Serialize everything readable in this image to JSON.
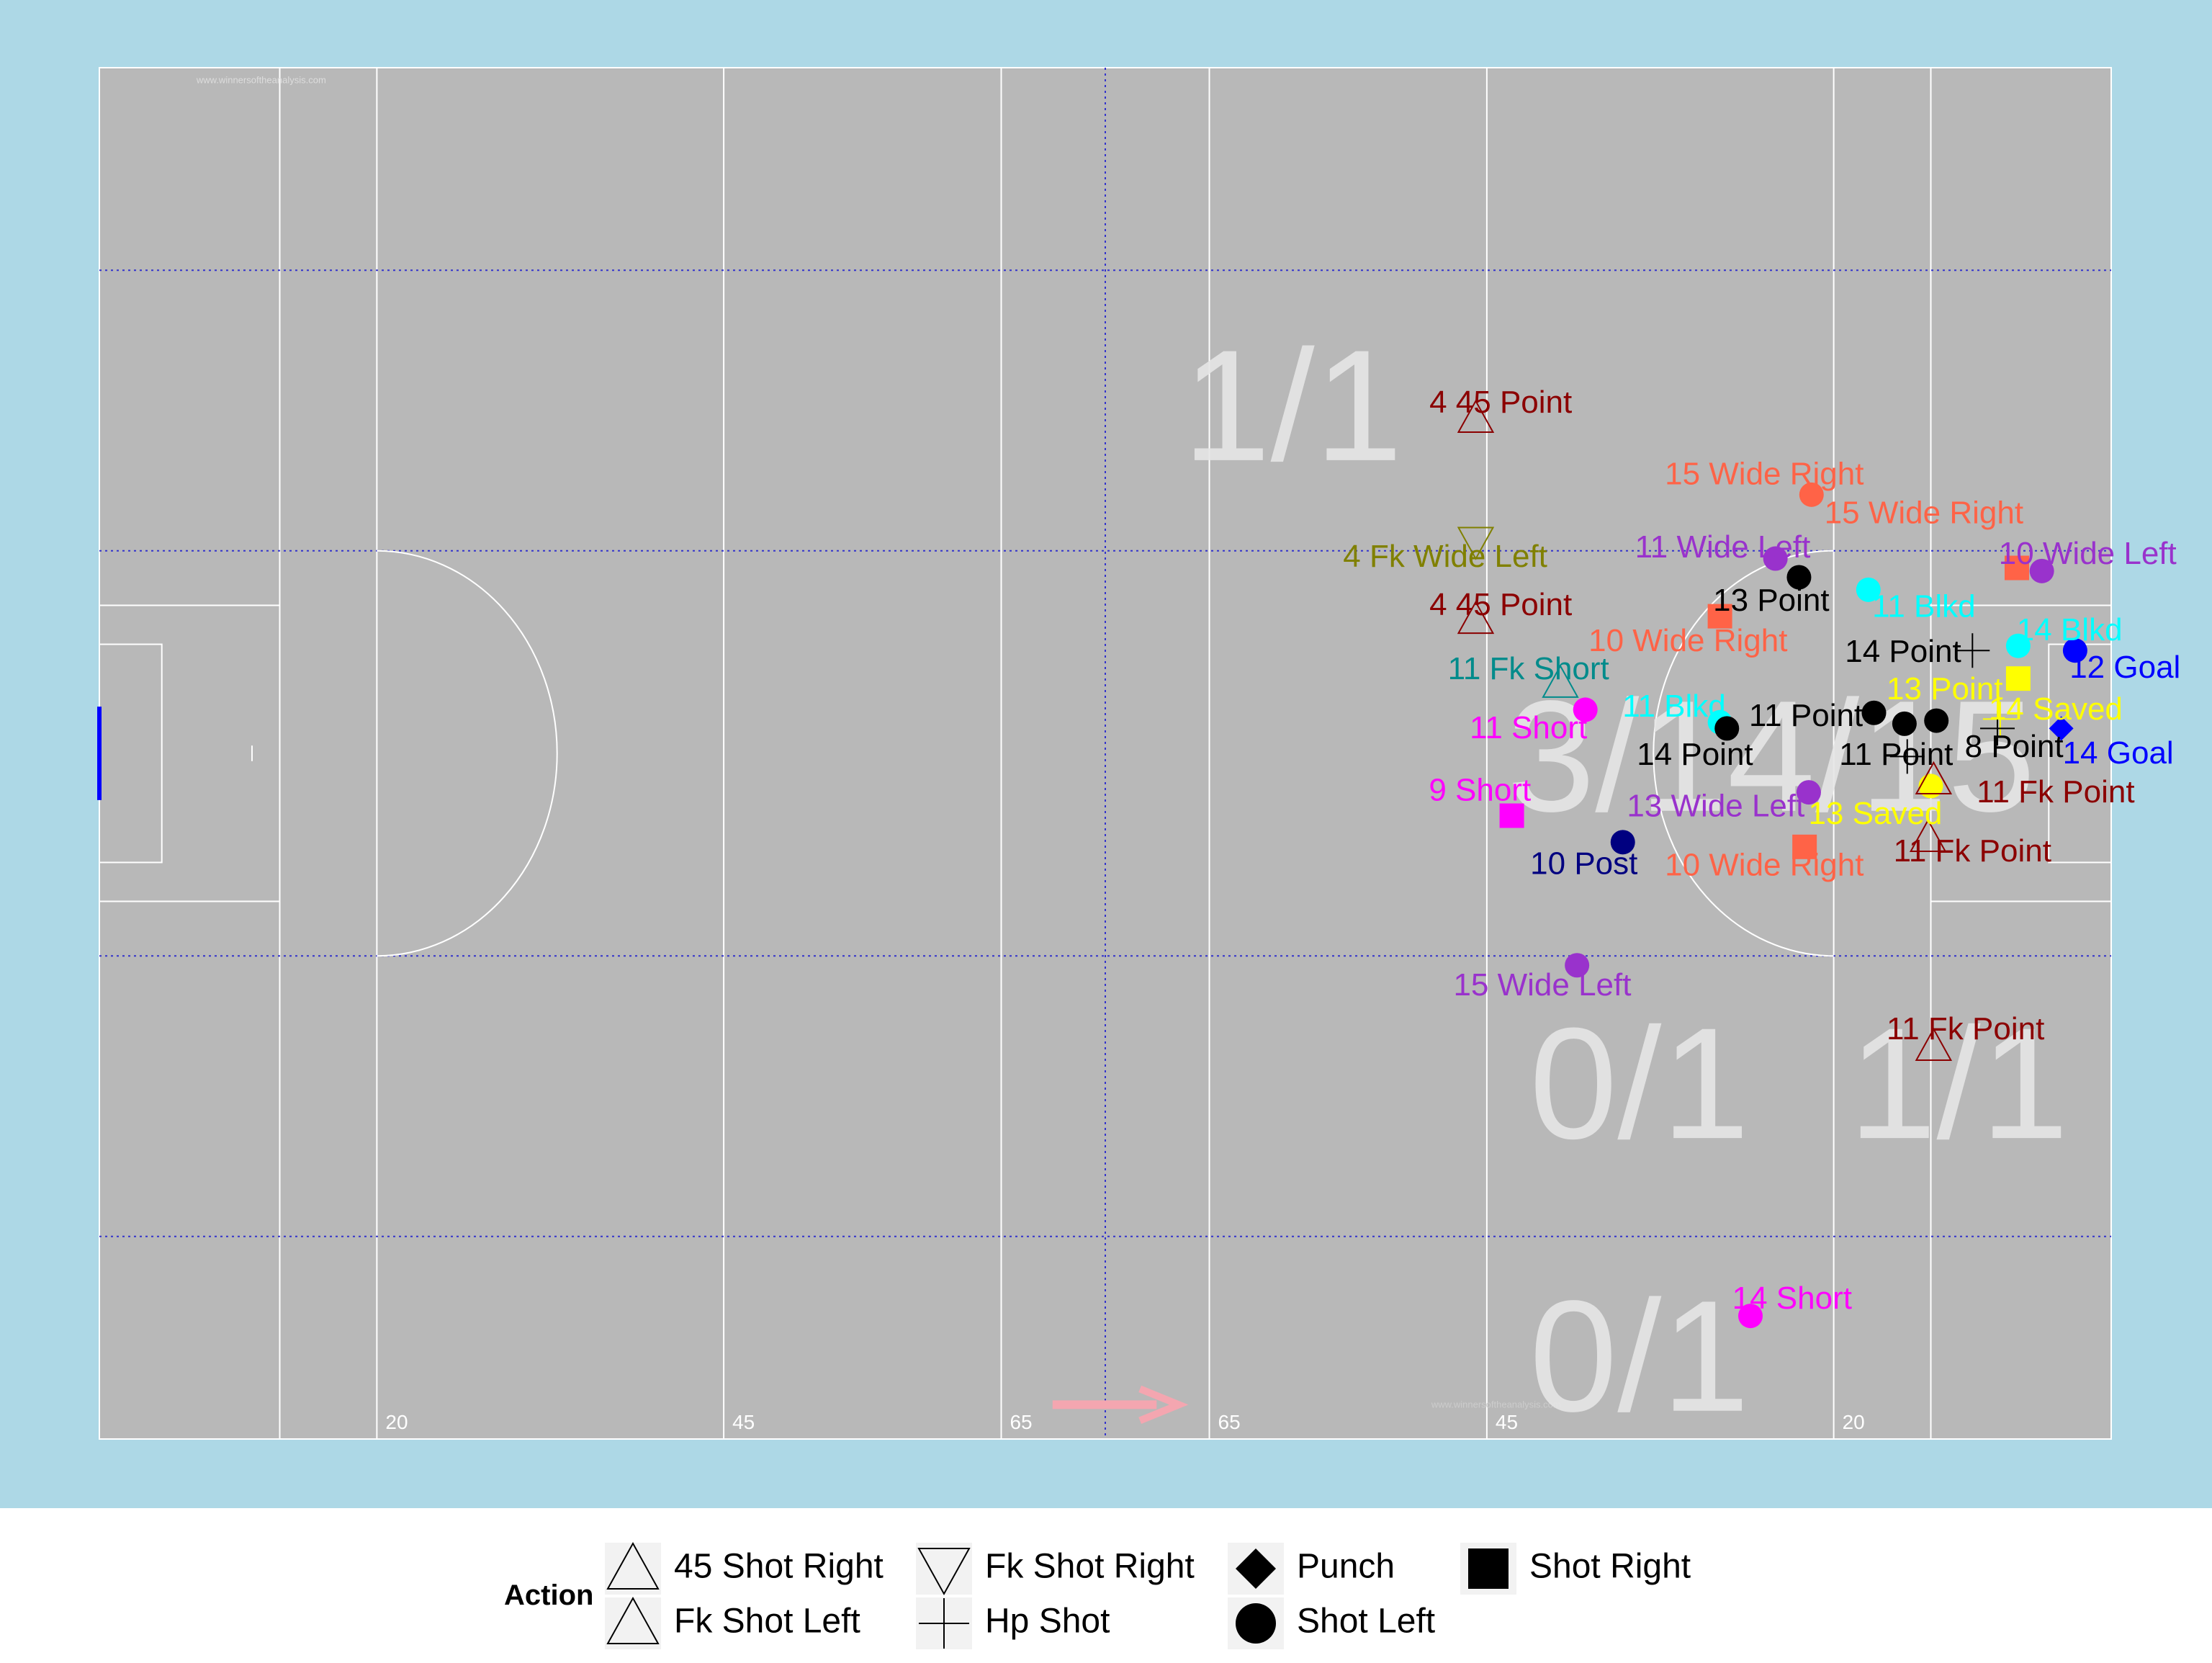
{
  "chart_data": {
    "type": "scatter",
    "title": "",
    "xlim": [
      0,
      145
    ],
    "ylim": [
      0,
      88
    ],
    "pitch": {
      "distance_marks": [
        "20",
        "45",
        "65",
        "65",
        "45",
        "20"
      ],
      "watermark": "www.winnersoftheanalysis.com"
    },
    "zone_labels": [
      {
        "text": "1/1",
        "x": 86.0,
        "y": 65.5
      },
      {
        "text": "3/14/15",
        "x": 120.5,
        "y": 43.0
      },
      {
        "text": "0/1",
        "x": 111.0,
        "y": 22.0
      },
      {
        "text": "1/1",
        "x": 134.0,
        "y": 22.0
      },
      {
        "text": "0/1",
        "x": 111.0,
        "y": 4.5
      }
    ],
    "legend": {
      "title": "Action",
      "placement": "bottom",
      "items": [
        {
          "label": "45 Shot Right",
          "shape": "triangle-up-open"
        },
        {
          "label": "Fk Shot Left",
          "shape": "triangle-up-open"
        },
        {
          "label": "Fk Shot Right",
          "shape": "triangle-down-open"
        },
        {
          "label": "Hp Shot",
          "shape": "plus"
        },
        {
          "label": "Punch",
          "shape": "diamond"
        },
        {
          "label": "Shot Left",
          "shape": "circle"
        },
        {
          "label": "Shot Right",
          "shape": "square"
        }
      ]
    },
    "points": [
      {
        "label": "4 45 Point",
        "x": 99.2,
        "y": 65.5,
        "action": "45 Shot Right",
        "color": "#8B0000",
        "lx": 101.0,
        "ly": 66.4
      },
      {
        "label": "4 Fk Wide Left",
        "x": 99.2,
        "y": 57.6,
        "action": "Fk Shot Right",
        "color": "#808000",
        "lx": 97.0,
        "ly": 56.5
      },
      {
        "label": "4 45 Point",
        "x": 99.2,
        "y": 52.6,
        "action": "45 Shot Right",
        "color": "#8B0000",
        "lx": 101.0,
        "ly": 53.4
      },
      {
        "label": "11 Fk Short",
        "x": 105.3,
        "y": 48.5,
        "action": "Fk Shot Left",
        "color": "#008B8B",
        "lx": 103.0,
        "ly": 49.3
      },
      {
        "label": "11 Short",
        "x": 107.1,
        "y": 46.8,
        "action": "Shot Left",
        "color": "#FF00FF",
        "lx": 103.0,
        "ly": 45.5
      },
      {
        "label": "9 Short",
        "x": 101.8,
        "y": 40.0,
        "action": "Shot Right",
        "color": "#FF00FF",
        "lx": 99.5,
        "ly": 41.5
      },
      {
        "label": "10 Post",
        "x": 109.8,
        "y": 38.3,
        "action": "Shot Left",
        "color": "#000080",
        "lx": 107.0,
        "ly": 36.8
      },
      {
        "label": "15 Wide Left",
        "x": 106.5,
        "y": 30.4,
        "action": "Shot Left",
        "color": "#9932CC",
        "lx": 104.0,
        "ly": 29.0
      },
      {
        "label": "15 Wide Right",
        "x": 123.4,
        "y": 60.6,
        "action": "Shot Left",
        "color": "#FF6347",
        "lx": 120.0,
        "ly": 61.8
      },
      {
        "label": "15 Wide Right",
        "x": 138.2,
        "y": 55.9,
        "action": "Shot Right",
        "color": "#FF6347",
        "lx": 131.5,
        "ly": 59.3
      },
      {
        "label": "11 Wide Left",
        "x": 120.8,
        "y": 56.5,
        "action": "Shot Left",
        "color": "#9932CC",
        "lx": 117.0,
        "ly": 57.1
      },
      {
        "label": "10 Wide Left",
        "x": 140.0,
        "y": 55.7,
        "action": "Shot Left",
        "color": "#9932CC",
        "lx": 143.3,
        "ly": 56.7
      },
      {
        "label": "13 Point",
        "x": 122.5,
        "y": 55.3,
        "action": "Shot Left",
        "color": "#000000",
        "lx": 120.5,
        "ly": 53.7
      },
      {
        "label": "10 Wide Right",
        "x": 116.8,
        "y": 52.8,
        "action": "Shot Right",
        "color": "#FF6347",
        "lx": 114.5,
        "ly": 51.1
      },
      {
        "label": "11 Blkd",
        "x": 127.5,
        "y": 54.5,
        "action": "Shot Left",
        "color": "#00FFFF",
        "lx": 131.5,
        "ly": 53.3
      },
      {
        "label": "14 Point",
        "x": 135.0,
        "y": 50.6,
        "action": "Hp Shot",
        "color": "#000000",
        "lx": 130.0,
        "ly": 50.4
      },
      {
        "label": "14 Blkd",
        "x": 138.3,
        "y": 50.9,
        "action": "Shot Left",
        "color": "#00FFFF",
        "lx": 142.0,
        "ly": 51.8
      },
      {
        "label": "12 Goal",
        "x": 142.4,
        "y": 50.6,
        "action": "Shot Left",
        "color": "#0000FF",
        "lx": 146.0,
        "ly": 49.4
      },
      {
        "label": "13 Point",
        "x": 138.3,
        "y": 48.8,
        "action": "Shot Right",
        "color": "#FFFF00",
        "lx": 133.0,
        "ly": 48.0
      },
      {
        "label": "14 Saved",
        "x": 137.0,
        "y": 46.2,
        "action": "Hp Shot",
        "color": "#FFFF00",
        "lx": 141.0,
        "ly": 46.7
      },
      {
        "label": "11 Blkd",
        "x": 116.8,
        "y": 46.0,
        "action": "Shot Left",
        "color": "#00FFFF",
        "lx": 113.5,
        "ly": 46.9
      },
      {
        "label": "11 Point",
        "x": 127.9,
        "y": 46.6,
        "action": "Shot Left",
        "color": "#000000",
        "lx": 123.0,
        "ly": 46.3
      },
      {
        "label": "14 Point",
        "x": 117.3,
        "y": 45.6,
        "action": "Shot Left",
        "color": "#000000",
        "lx": 115.0,
        "ly": 43.8
      },
      {
        "label": "",
        "x": 130.1,
        "y": 45.9,
        "action": "Shot Left",
        "color": "#000000",
        "lx": 0,
        "ly": 0
      },
      {
        "label": "",
        "x": 132.4,
        "y": 46.1,
        "action": "Shot Left",
        "color": "#000000",
        "lx": 0,
        "ly": 0
      },
      {
        "label": "11 Point",
        "x": 130.3,
        "y": 43.8,
        "action": "Hp Shot",
        "color": "#000000",
        "lx": 129.5,
        "ly": 43.8
      },
      {
        "label": "8 Point",
        "x": 136.8,
        "y": 45.6,
        "action": "Hp Shot",
        "color": "#000000",
        "lx": 138.0,
        "ly": 44.3
      },
      {
        "label": "14 Goal",
        "x": 141.4,
        "y": 45.6,
        "action": "Punch",
        "color": "#0000FF",
        "lx": 145.5,
        "ly": 43.9
      },
      {
        "label": "13 Wide Left",
        "x": 123.2,
        "y": 41.5,
        "action": "Shot Left",
        "color": "#9932CC",
        "lx": 116.5,
        "ly": 40.5
      },
      {
        "label": "13 Saved",
        "x": 132.0,
        "y": 41.9,
        "action": "Shot Left",
        "color": "#FFFF00",
        "lx": 128.0,
        "ly": 40.0
      },
      {
        "label": "11 Fk Point",
        "x": 132.2,
        "y": 42.3,
        "action": "Fk Shot Left",
        "color": "#8B0000",
        "lx": 141.0,
        "ly": 41.4
      },
      {
        "label": "10 Wide Right",
        "x": 122.9,
        "y": 38.0,
        "action": "Shot Right",
        "color": "#FF6347",
        "lx": 120.0,
        "ly": 36.7
      },
      {
        "label": "11 Fk Point",
        "x": 131.8,
        "y": 38.6,
        "action": "Fk Shot Left",
        "color": "#8B0000",
        "lx": 135.0,
        "ly": 37.6
      },
      {
        "label": "11 Fk Point",
        "x": 132.2,
        "y": 25.2,
        "action": "Fk Shot Left",
        "color": "#8B0000",
        "lx": 134.5,
        "ly": 26.2
      },
      {
        "label": "14 Short",
        "x": 119.0,
        "y": 7.9,
        "action": "Shot Left",
        "color": "#FF00FF",
        "lx": 122.0,
        "ly": 8.9
      }
    ]
  }
}
